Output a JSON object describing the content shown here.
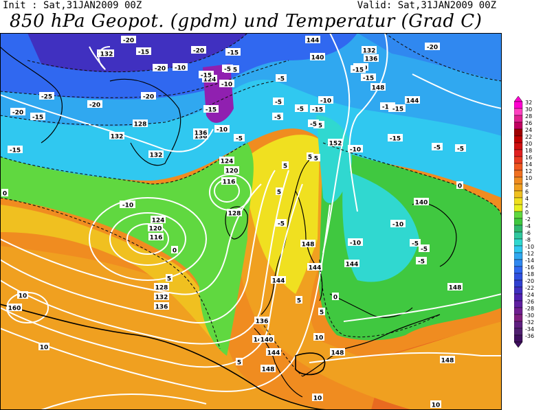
{
  "header": {
    "init_text": "Init : Sat,31JAN2009 00Z",
    "valid_text": "Valid: Sat,31JAN2009 00Z",
    "title": "850 hPa Geopot. (gpdm) und Temperatur (Grad C)"
  },
  "legend": {
    "values": [
      "32",
      "30",
      "28",
      "26",
      "24",
      "22",
      "20",
      "18",
      "16",
      "14",
      "12",
      "10",
      "8",
      "6",
      "4",
      "2",
      "0",
      "-2",
      "-4",
      "-6",
      "-8",
      "-10",
      "-12",
      "-14",
      "-16",
      "-18",
      "-20",
      "-22",
      "-24",
      "-26",
      "-28",
      "-30",
      "-32",
      "-34",
      "-36"
    ],
    "colors": [
      "#ff00d0",
      "#ff40c0",
      "#e02090",
      "#c00060",
      "#a00000",
      "#c00000",
      "#d01010",
      "#e02020",
      "#e83a20",
      "#f05820",
      "#f07020",
      "#f08c20",
      "#f0a020",
      "#f0c020",
      "#f0e020",
      "#e8f020",
      "#60d840",
      "#40c840",
      "#30b870",
      "#30c8a0",
      "#30d8d0",
      "#30c8f0",
      "#30a8f0",
      "#3088f0",
      "#3068f0",
      "#3050e0",
      "#3040d0",
      "#4030c0",
      "#5020b0",
      "#6020a0",
      "#702090",
      "#802080",
      "#602080",
      "#502070",
      "#401060"
    ]
  },
  "map_labels": {
    "geopot": [
      "128",
      "132",
      "136",
      "128",
      "132",
      "124",
      "136",
      "132",
      "144",
      "140",
      "136",
      "132",
      "148",
      "140",
      "144",
      "152",
      "124",
      "120",
      "116",
      "124",
      "120",
      "116",
      "128",
      "148",
      "144",
      "140",
      "144",
      "128",
      "132",
      "136",
      "140",
      "136",
      "148",
      "144",
      "148",
      "148",
      "160",
      "140",
      "144",
      "148"
    ],
    "temp": [
      "-25",
      "-20",
      "-15",
      "-20",
      "-15",
      "-10",
      "-20",
      "-25",
      "-20",
      "-20",
      "-15",
      "-15",
      "-10",
      "-15",
      "-20",
      "-15",
      "-10",
      "-5",
      "-5",
      "-5",
      "-5",
      "-10",
      "-15",
      "-15",
      "-15",
      "-15",
      "-10",
      "-5",
      "-5",
      "-5",
      "-20",
      "-15",
      "-10",
      "-5",
      "-5",
      "-5",
      "-15",
      "-15",
      "-5",
      "-5",
      "0",
      "-10",
      "-10",
      "-5",
      "-5",
      "-5",
      "0",
      "0",
      "5",
      "5",
      "5",
      "5",
      "10",
      "10",
      "5",
      "10",
      "10",
      "10",
      "-10",
      "-15",
      "-5",
      "0",
      "5",
      "5"
    ]
  }
}
